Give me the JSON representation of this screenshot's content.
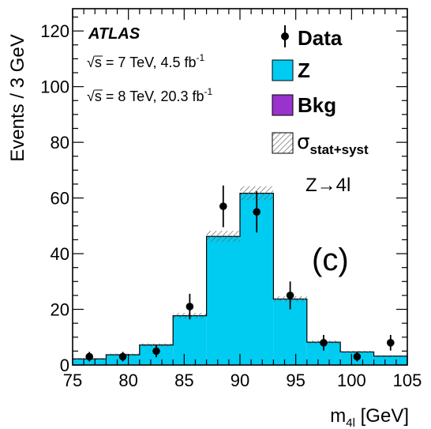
{
  "chart_data": {
    "type": "histogram",
    "x_bin_edges": [
      75,
      78,
      81,
      84,
      87,
      90,
      93,
      96,
      99,
      102,
      105
    ],
    "xlim": [
      75,
      105
    ],
    "ylim": [
      0,
      128
    ],
    "x_ticks": [
      75,
      80,
      85,
      90,
      95,
      100,
      105
    ],
    "y_ticks": [
      0,
      20,
      40,
      60,
      80,
      100,
      120
    ],
    "xlabel_main": "m",
    "xlabel_sub": "4l",
    "xlabel_unit": " [GeV]",
    "ylabel": "Events / 3 GeV",
    "series": [
      {
        "name": "Z",
        "color": "#00ccf2",
        "values": [
          2,
          3.5,
          7,
          17.5,
          46,
          61.5,
          23.5,
          8,
          4.5,
          3
        ]
      },
      {
        "name": "Bkg",
        "color": "#9933cc",
        "values": [
          0.2,
          0.2,
          0.2,
          0.2,
          0.2,
          0.2,
          0.2,
          0.2,
          0.2,
          0.2
        ]
      }
    ],
    "uncertainty": {
      "name": "σ",
      "name_sub": "stat+syst",
      "half_width": [
        0.3,
        0.4,
        0.6,
        1.0,
        2.0,
        2.5,
        1.0,
        0.6,
        0.4,
        0.3
      ]
    },
    "data": {
      "name": "Data",
      "x": [
        76.5,
        79.5,
        82.5,
        85.5,
        88.5,
        91.5,
        94.5,
        97.5,
        100.5,
        103.5
      ],
      "y": [
        3,
        3,
        5,
        21,
        57,
        55,
        25,
        8,
        3,
        8
      ],
      "err": [
        1.7,
        1.7,
        2.2,
        4.6,
        7.5,
        7.4,
        5,
        2.8,
        1.7,
        2.8
      ]
    },
    "annotations": {
      "experiment": "ATLAS",
      "sqrt_symbol": "√",
      "energy_line1_s": "s",
      "energy_line1_rest": " = 7 TeV, 4.5 fb",
      "energy_line1_sup": "-1",
      "energy_line2_s": "s",
      "energy_line2_rest": " = 8 TeV, 20.3 fb",
      "energy_line2_sup": "-1",
      "process": "Z→4l",
      "panel_label": "(c)"
    },
    "legend_position": "top-right"
  }
}
